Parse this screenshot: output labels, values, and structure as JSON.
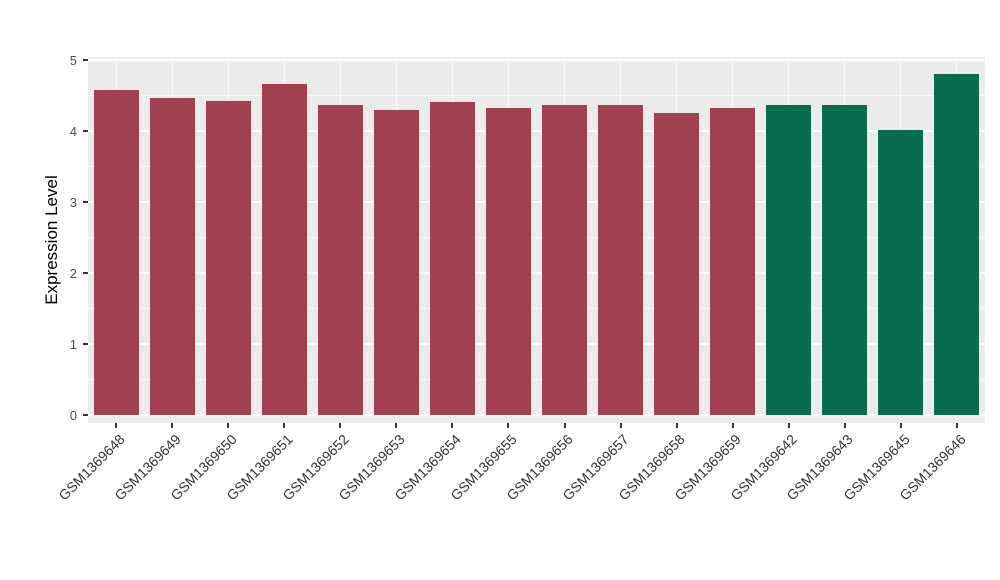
{
  "figure": {
    "ylabel": "Expression Level"
  },
  "chart_data": {
    "type": "bar",
    "title": "",
    "xlabel": "",
    "ylabel": "Expression Level",
    "ylim": [
      0,
      5
    ],
    "yticks": [
      0,
      1,
      2,
      3,
      4,
      5
    ],
    "grid": "on",
    "legend_position": "none",
    "panel_background": "#EBEBEB",
    "gridline_color": "#FFFFFF",
    "categories": [
      "GSM1369648",
      "GSM1369649",
      "GSM1369650",
      "GSM1369651",
      "GSM1369652",
      "GSM1369653",
      "GSM1369654",
      "GSM1369655",
      "GSM1369656",
      "GSM1369657",
      "GSM1369658",
      "GSM1369659",
      "GSM1369642",
      "GSM1369643",
      "GSM1369645",
      "GSM1369646"
    ],
    "values": [
      4.58,
      4.47,
      4.42,
      4.66,
      4.36,
      4.3,
      4.41,
      4.32,
      4.36,
      4.37,
      4.25,
      4.32,
      4.36,
      4.37,
      4.02,
      4.8
    ],
    "group_colors": {
      "maroon": "#A04050",
      "green": "#0A6C4F"
    },
    "bar_colors": [
      "#A04050",
      "#A04050",
      "#A04050",
      "#A04050",
      "#A04050",
      "#A04050",
      "#A04050",
      "#A04050",
      "#A04050",
      "#A04050",
      "#A04050",
      "#A04050",
      "#0A6C4F",
      "#0A6C4F",
      "#0A6C4F",
      "#0A6C4F"
    ]
  }
}
